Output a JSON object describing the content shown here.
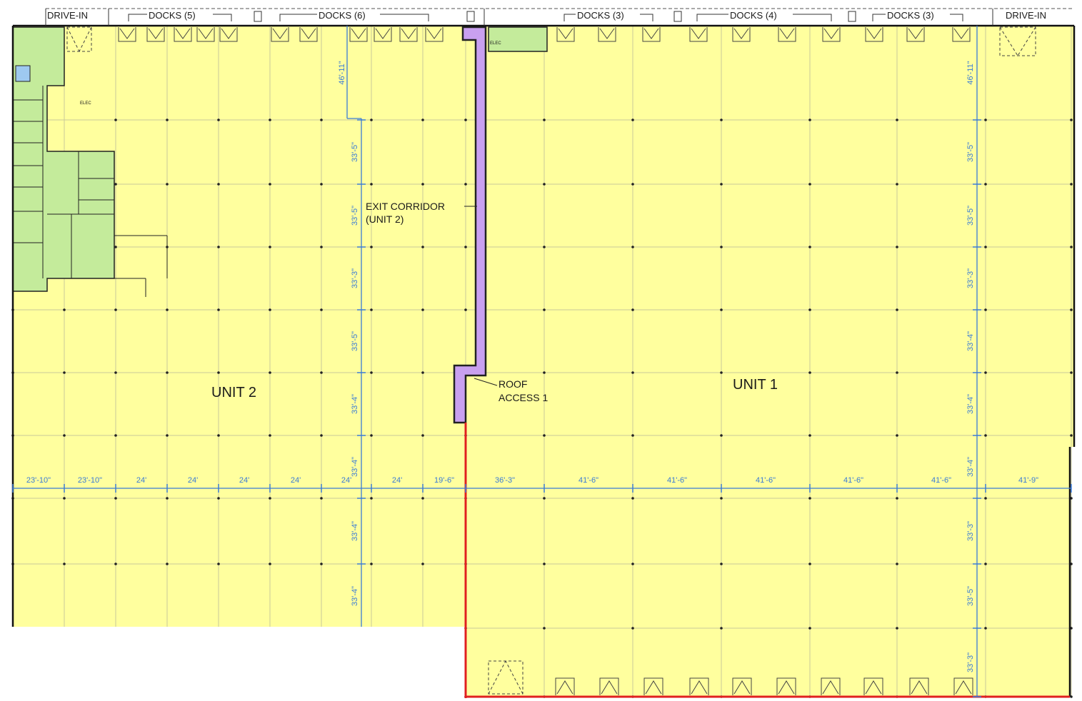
{
  "top_labels": {
    "drive_in_left": "DRIVE-IN",
    "docks_a": "DOCKS (5)",
    "docks_b": "DOCKS (6)",
    "docks_c": "DOCKS (3)",
    "docks_d": "DOCKS (4)",
    "docks_e": "DOCKS (3)",
    "drive_in_right": "DRIVE-IN"
  },
  "units": {
    "unit2": "UNIT 2",
    "unit1": "UNIT 1"
  },
  "callouts": {
    "exit_corridor_line1": "EXIT CORRIDOR",
    "exit_corridor_line2": "(UNIT 2)",
    "roof_access_line1": "ROOF",
    "roof_access_line2": "ACCESS 1"
  },
  "office_labels": {
    "elec_left": "ELEC",
    "elec_right": "ELEC"
  },
  "horizontal_dimensions": [
    "23'-10\"",
    "23'-10\"",
    "24'",
    "24'",
    "24'",
    "24'",
    "24'",
    "24'",
    "19'-6\"",
    "36'-3\"",
    "41'-6\"",
    "41'-6\"",
    "41'-6\"",
    "41'-6\"",
    "41'-6\"",
    "41'-9\""
  ],
  "vertical_dimensions_left": [
    "46'-11\"",
    "33'-5\"",
    "33'-5\"",
    "33'-3\"",
    "33'-5\"",
    "33'-4\"",
    "33'-4\"",
    "33'-4\"",
    "33'-4\""
  ],
  "vertical_dimensions_right": [
    "46'-11\"",
    "33'-5\"",
    "33'-5\"",
    "33'-3\"",
    "33'-4\"",
    "33'-4\"",
    "33'-4\"",
    "33'-3\"",
    "33'-5\"",
    "33'-3\""
  ],
  "colors": {
    "warehouse": "#ffff9e",
    "office": "#c4eb9b",
    "corridor": "#c9a0f0",
    "dimension": "#3a7bd5",
    "boundary": "#e02020",
    "wall": "#111111",
    "grid": "#c8c89a"
  }
}
